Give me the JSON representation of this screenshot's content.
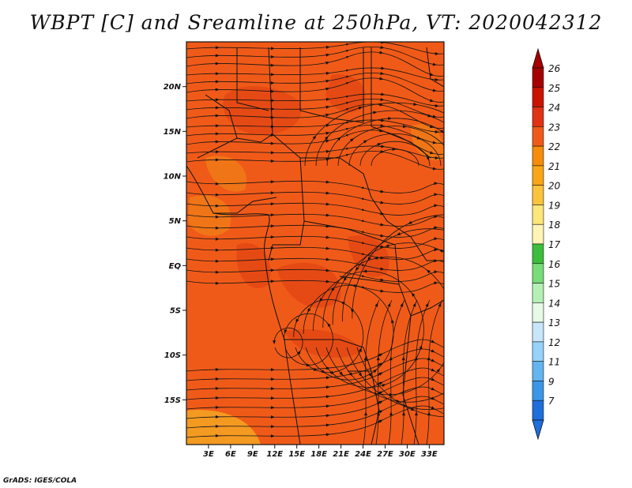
{
  "title": "WBPT [C] and Sreamline at 250hPa, VT: 2020042312",
  "footer": "GrADS: IGES/COLA",
  "map": {
    "lat_range": [
      -20,
      25
    ],
    "lon_range": [
      0,
      35
    ],
    "lat_ticks": [
      {
        "value": 20,
        "label": "20N"
      },
      {
        "value": 15,
        "label": "15N"
      },
      {
        "value": 10,
        "label": "10N"
      },
      {
        "value": 5,
        "label": "5N"
      },
      {
        "value": 0,
        "label": "EQ"
      },
      {
        "value": -5,
        "label": "5S"
      },
      {
        "value": -10,
        "label": "10S"
      },
      {
        "value": -15,
        "label": "15S"
      }
    ],
    "lon_ticks": [
      {
        "value": 3,
        "label": "3E"
      },
      {
        "value": 6,
        "label": "6E"
      },
      {
        "value": 9,
        "label": "9E"
      },
      {
        "value": 12,
        "label": "12E"
      },
      {
        "value": 15,
        "label": "15E"
      },
      {
        "value": 18,
        "label": "18E"
      },
      {
        "value": 21,
        "label": "21E"
      },
      {
        "value": 24,
        "label": "24E"
      },
      {
        "value": 27,
        "label": "27E"
      },
      {
        "value": 30,
        "label": "30E"
      },
      {
        "value": 33,
        "label": "33E"
      }
    ],
    "field_colors": {
      "base": "#f05a18",
      "patch": "#e44814",
      "light": "#f07a18",
      "yellow": "#f5a623"
    }
  },
  "colorbar": {
    "levels": [
      {
        "label": "26",
        "color": "#a50000"
      },
      {
        "label": "25",
        "color": "#c81400"
      },
      {
        "label": "24",
        "color": "#e03214"
      },
      {
        "label": "23",
        "color": "#f05a18"
      },
      {
        "label": "22",
        "color": "#f58c0a"
      },
      {
        "label": "21",
        "color": "#faa516"
      },
      {
        "label": "20",
        "color": "#fbc23c"
      },
      {
        "label": "19",
        "color": "#fde67a"
      },
      {
        "label": "18",
        "color": "#fff5b4"
      },
      {
        "label": "17",
        "color": "#3cbe3c"
      },
      {
        "label": "16",
        "color": "#78dc78"
      },
      {
        "label": "15",
        "color": "#b4f0b4"
      },
      {
        "label": "14",
        "color": "#e6fae6"
      },
      {
        "label": "13",
        "color": "#c8e6fa"
      },
      {
        "label": "12",
        "color": "#96d2fa"
      },
      {
        "label": "11",
        "color": "#64b4f0"
      },
      {
        "label": "9",
        "color": "#3c96e6"
      },
      {
        "label": "7",
        "color": "#1e6edc"
      }
    ],
    "over_color": "#a50000",
    "under_color": "#1e6edc"
  }
}
